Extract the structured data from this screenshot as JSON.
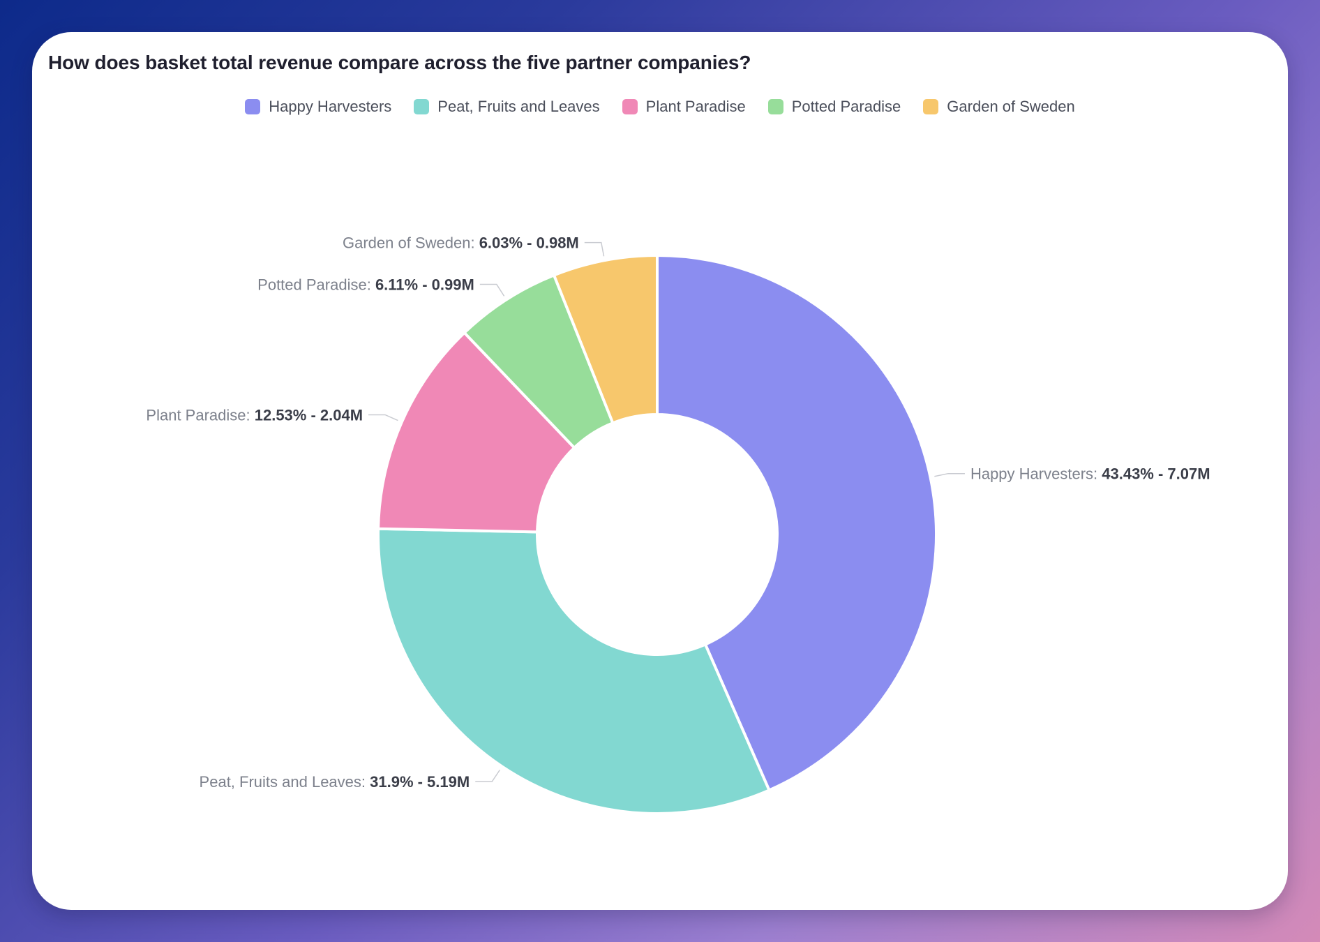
{
  "chart_data": {
    "type": "pie",
    "title": "How does basket total revenue compare across the five partner companies?",
    "legend_position": "top-center",
    "donut": true,
    "categories": [
      "Happy Harvesters",
      "Peat, Fruits and Leaves",
      "Plant Paradise",
      "Potted Paradise",
      "Garden of Sweden"
    ],
    "percentages": [
      43.43,
      31.9,
      12.53,
      6.11,
      6.03
    ],
    "values": [
      7.07,
      5.19,
      2.04,
      0.99,
      0.98
    ],
    "value_labels": [
      "43.43% - 7.07M",
      "31.9% - 5.19M",
      "12.53% - 2.04M",
      "6.11% - 0.99M",
      "6.03% - 0.98M"
    ],
    "colors": [
      "#8b8df0",
      "#82d8d1",
      "#f088b6",
      "#97dd9a",
      "#f7c76c"
    ],
    "start_angle_deg": 0,
    "direction": "clockwise"
  }
}
